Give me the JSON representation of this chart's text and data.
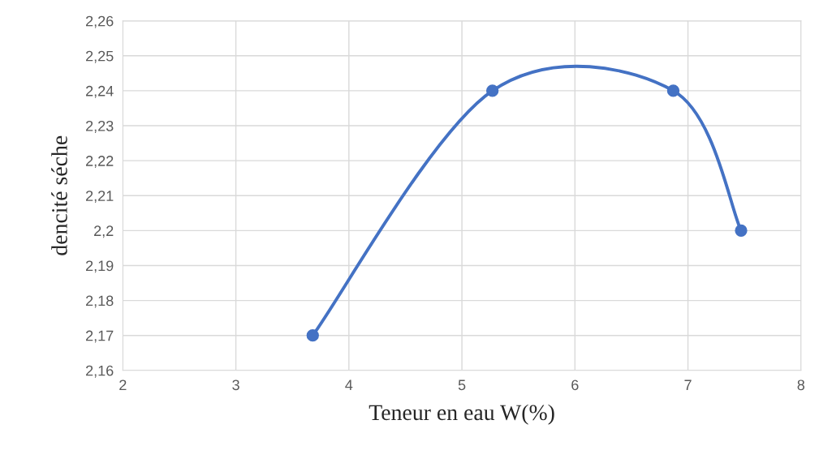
{
  "chart_data": {
    "type": "line",
    "xlabel": "Teneur en eau W(%)",
    "ylabel": "dencité séche",
    "x": [
      3.68,
      5.27,
      6.87,
      7.47
    ],
    "series": [
      {
        "color": "#4472c4",
        "values": [
          2.17,
          2.24,
          2.24,
          2.2
        ]
      }
    ],
    "xlim": [
      2,
      8
    ],
    "xticks": [
      2,
      3,
      4,
      5,
      6,
      7,
      8
    ],
    "ylim": [
      2.16,
      2.26
    ],
    "yticks": [
      {
        "value": 2.16,
        "label": "2,16"
      },
      {
        "value": 2.17,
        "label": "2,17"
      },
      {
        "value": 2.18,
        "label": "2,18"
      },
      {
        "value": 2.19,
        "label": "2,19"
      },
      {
        "value": 2.2,
        "label": "2,2"
      },
      {
        "value": 2.21,
        "label": "2,21"
      },
      {
        "value": 2.22,
        "label": "2,22"
      },
      {
        "value": 2.23,
        "label": "2,23"
      },
      {
        "value": 2.24,
        "label": "2,24"
      },
      {
        "value": 2.25,
        "label": "2,25"
      },
      {
        "value": 2.26,
        "label": "2,26"
      }
    ],
    "grid": true,
    "marker": "circle",
    "line_style": "solid"
  }
}
